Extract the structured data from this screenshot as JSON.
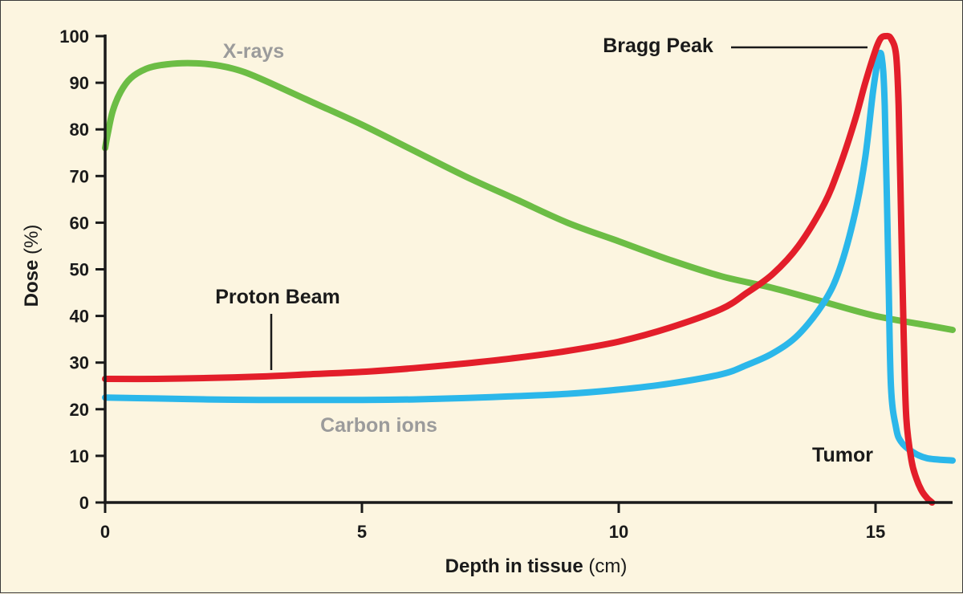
{
  "chart_data": {
    "type": "line",
    "title": "",
    "xlabel": "Depth in tissue",
    "xlabel_unit": "(cm)",
    "ylabel": "Dose",
    "ylabel_unit": "(%)",
    "xlim": [
      0,
      16.5
    ],
    "ylim": [
      0,
      100
    ],
    "x_ticks": [
      0,
      5,
      10,
      15
    ],
    "y_ticks": [
      0,
      10,
      20,
      30,
      40,
      50,
      60,
      70,
      80,
      90,
      100
    ],
    "grid": false,
    "series": [
      {
        "name": "X-rays",
        "color": "#6cbd45",
        "x": [
          0,
          0.05,
          0.15,
          0.3,
          0.5,
          0.8,
          1.1,
          1.5,
          2.0,
          2.5,
          3,
          4,
          5,
          6,
          7,
          8,
          9,
          10,
          11,
          12,
          13,
          14,
          15,
          16,
          16.5
        ],
        "y": [
          76,
          79,
          84,
          88,
          91,
          93,
          93.8,
          94.2,
          94,
          93,
          91,
          86,
          81,
          75.5,
          70,
          65,
          60,
          56,
          52,
          48.5,
          46,
          43,
          40,
          38,
          37
        ]
      },
      {
        "name": "Proton Beam",
        "color": "#e31e2a",
        "x": [
          0,
          1,
          2,
          3,
          4,
          5,
          6,
          7,
          8,
          9,
          10,
          11,
          12,
          12.5,
          13,
          13.5,
          14,
          14.3,
          14.6,
          14.8,
          15,
          15.1,
          15.2,
          15.3,
          15.4,
          15.45,
          15.5,
          15.55,
          15.6,
          15.7,
          15.8,
          15.9,
          16.0,
          16.1
        ],
        "y": [
          26.5,
          26.5,
          26.7,
          27,
          27.5,
          28,
          28.8,
          29.8,
          31,
          32.5,
          34.5,
          37.5,
          41.5,
          45,
          49,
          55,
          64,
          72,
          82,
          90,
          97,
          99.5,
          100,
          99.5,
          96,
          85,
          60,
          35,
          18,
          9,
          5,
          2.5,
          1,
          0
        ]
      },
      {
        "name": "Carbon ions",
        "color": "#2bb7ea",
        "x": [
          0,
          1,
          2,
          3,
          4,
          5,
          6,
          7,
          8,
          9,
          10,
          11,
          12,
          12.5,
          13,
          13.5,
          14,
          14.3,
          14.6,
          14.8,
          14.95,
          15.05,
          15.12,
          15.18,
          15.25,
          15.3,
          15.4,
          15.5,
          15.7,
          16.0,
          16.5
        ],
        "y": [
          22.5,
          22.3,
          22.1,
          22,
          22,
          22,
          22.1,
          22.4,
          22.8,
          23.3,
          24.2,
          25.5,
          27.5,
          29.5,
          32,
          36,
          43,
          50,
          62,
          74,
          88,
          95,
          95.5,
          85,
          50,
          25,
          16,
          13,
          11,
          9.5,
          9
        ]
      }
    ],
    "annotations": [
      {
        "text": "X-rays",
        "color": "#9b9b9b"
      },
      {
        "text": "Proton Beam",
        "color": "#1a1a1a"
      },
      {
        "text": "Carbon ions",
        "color": "#9b9b9b"
      },
      {
        "text": "Bragg Peak",
        "color": "#1a1a1a"
      },
      {
        "text": "Tumor",
        "color": "#1a1a1a"
      }
    ],
    "axis_color": "#1a1a1a"
  }
}
